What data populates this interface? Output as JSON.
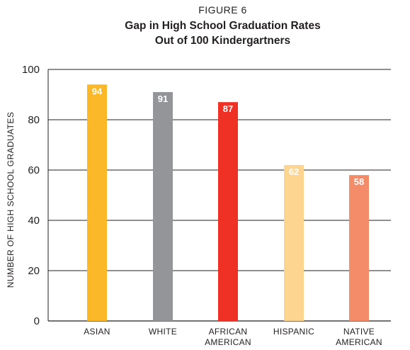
{
  "figure_label": "FIGURE 6",
  "chart_data": {
    "type": "bar",
    "title_lines": [
      "Gap in High School Graduation Rates",
      "Out of 100 Kindergartners"
    ],
    "ylabel": "NUMBER OF HIGH SCHOOL GRADUATES",
    "xlabel": "",
    "ylim": [
      0,
      100
    ],
    "yticks": [
      0,
      20,
      40,
      60,
      80,
      100
    ],
    "grid": true,
    "categories": [
      [
        "ASIAN"
      ],
      [
        "WHITE"
      ],
      [
        "AFRICAN",
        "AMERICAN"
      ],
      [
        "HISPANIC"
      ],
      [
        "NATIVE",
        "AMERICAN"
      ]
    ],
    "values": [
      94,
      91,
      87,
      62,
      58
    ],
    "data_labels": [
      "94",
      "91",
      "87",
      "62",
      "58"
    ],
    "colors": [
      "#fbb829",
      "#939598",
      "#ee3124",
      "#fdd591",
      "#f58c69"
    ]
  }
}
